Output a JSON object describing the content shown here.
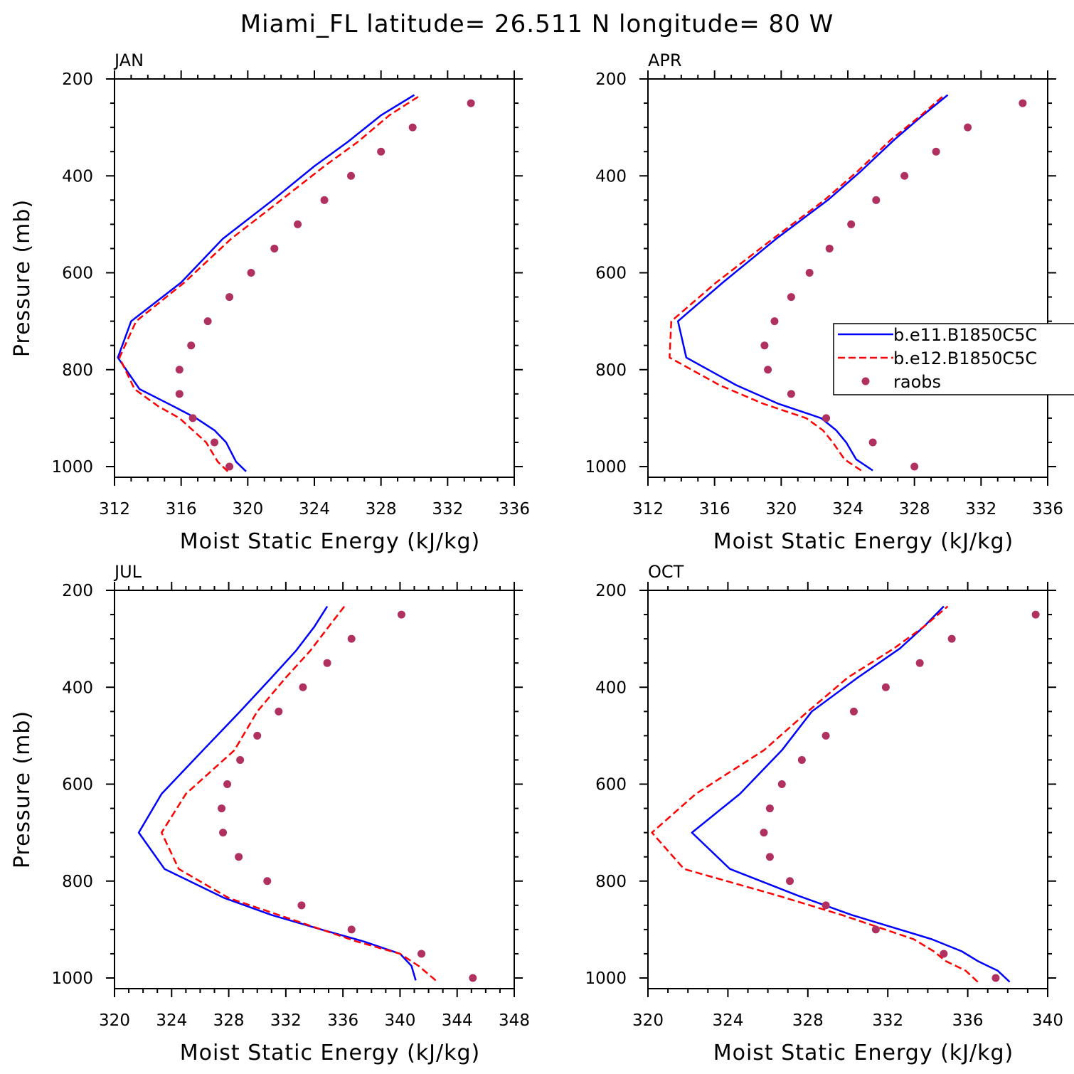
{
  "title": "Miami_FL  latitude= 26.511 N longitude= 80 W",
  "colors": {
    "series1": "#0000ff",
    "series2": "#ff0000",
    "raobs": "#b03060"
  },
  "legend": {
    "panel": 1,
    "entries": [
      "b.e11.B1850C5C",
      "b.e12.B1850C5C",
      "raobs"
    ]
  },
  "chart_data": [
    {
      "type": "line",
      "panel": "JAN",
      "xlabel": "Moist Static Energy (kJ/kg)",
      "ylabel": "Pressure (mb)",
      "xlim": [
        312,
        336
      ],
      "xticks": [
        312,
        316,
        320,
        324,
        328,
        332,
        336
      ],
      "ylim": [
        1000,
        200
      ],
      "yticks": [
        200,
        400,
        600,
        800,
        1000
      ],
      "series": [
        {
          "name": "b.e11.B1850C5C",
          "style": "solid",
          "p": [
            1010,
            990,
            950,
            925,
            900,
            875,
            840,
            775,
            700,
            620,
            530,
            450,
            380,
            330,
            275,
            233
          ],
          "x": [
            319.9,
            319.3,
            318.7,
            318.0,
            316.9,
            315.5,
            313.5,
            312.2,
            313.0,
            316.0,
            318.5,
            321.5,
            324.0,
            326.0,
            328.0,
            330.0
          ]
        },
        {
          "name": "b.e12.B1850C5C",
          "style": "dashed",
          "p": [
            1010,
            990,
            950,
            925,
            900,
            875,
            840,
            775,
            700,
            620,
            530,
            450,
            380,
            330,
            275,
            233
          ],
          "x": [
            318.8,
            318.2,
            317.5,
            316.7,
            315.9,
            314.6,
            313.2,
            312.3,
            313.3,
            316.2,
            319.0,
            322.0,
            324.6,
            326.6,
            328.5,
            330.4
          ]
        }
      ],
      "raobs": {
        "p": [
          250,
          300,
          350,
          400,
          450,
          500,
          550,
          600,
          650,
          700,
          750,
          800,
          850,
          900,
          950,
          1000
        ],
        "x": [
          333.4,
          329.9,
          328.0,
          326.2,
          324.6,
          323.0,
          321.6,
          320.2,
          318.9,
          317.6,
          316.6,
          315.9,
          315.9,
          316.7,
          318.0,
          318.9
        ]
      }
    },
    {
      "type": "line",
      "panel": "APR",
      "xlabel": "Moist Static Energy (kJ/kg)",
      "ylabel": "",
      "xlim": [
        312,
        336
      ],
      "xticks": [
        312,
        316,
        320,
        324,
        328,
        332,
        336
      ],
      "ylim": [
        1000,
        200
      ],
      "yticks": [
        200,
        400,
        600,
        800,
        1000
      ],
      "series": [
        {
          "name": "b.e11.B1850C5C",
          "style": "solid",
          "p": [
            1008,
            985,
            950,
            925,
            900,
            870,
            832,
            775,
            700,
            620,
            530,
            450,
            390,
            325,
            275,
            233
          ],
          "x": [
            325.5,
            324.5,
            323.9,
            323.3,
            322.4,
            319.8,
            317.3,
            314.3,
            313.8,
            316.5,
            319.7,
            322.8,
            324.8,
            326.8,
            328.5,
            330.0
          ]
        },
        {
          "name": "b.e12.B1850C5C",
          "style": "dashed",
          "p": [
            1008,
            985,
            950,
            925,
            900,
            870,
            832,
            775,
            700,
            620,
            530,
            450,
            390,
            325,
            275,
            233
          ],
          "x": [
            324.8,
            323.8,
            323.1,
            322.5,
            321.5,
            318.9,
            316.3,
            313.3,
            313.4,
            316.1,
            319.5,
            322.6,
            324.6,
            326.6,
            328.4,
            329.8
          ]
        }
      ],
      "raobs": {
        "p": [
          250,
          300,
          350,
          400,
          450,
          500,
          550,
          600,
          650,
          700,
          750,
          800,
          850,
          900,
          950,
          1000
        ],
        "x": [
          334.5,
          331.2,
          329.3,
          327.4,
          325.7,
          324.2,
          322.9,
          321.7,
          320.6,
          319.6,
          319.0,
          319.2,
          320.6,
          322.7,
          325.5,
          328.0
        ]
      }
    },
    {
      "type": "line",
      "panel": "JUL",
      "xlabel": "Moist Static Energy (kJ/kg)",
      "ylabel": "Pressure (mb)",
      "xlim": [
        320,
        348
      ],
      "xticks": [
        320,
        324,
        328,
        332,
        336,
        340,
        344,
        348
      ],
      "ylim": [
        1000,
        200
      ],
      "yticks": [
        200,
        400,
        600,
        800,
        1000
      ],
      "series": [
        {
          "name": "b.e11.B1850C5C",
          "style": "solid",
          "p": [
            1005,
            975,
            950,
            925,
            900,
            870,
            835,
            775,
            700,
            620,
            530,
            450,
            380,
            325,
            275,
            233
          ],
          "x": [
            341.1,
            340.8,
            340.0,
            337.5,
            334.5,
            331.0,
            327.7,
            323.5,
            321.7,
            323.3,
            326.2,
            328.8,
            331.0,
            332.7,
            334.0,
            334.9
          ]
        },
        {
          "name": "b.e12.B1850C5C",
          "style": "dashed",
          "p": [
            1005,
            975,
            950,
            925,
            900,
            870,
            835,
            775,
            700,
            620,
            530,
            450,
            380,
            325,
            275,
            233
          ],
          "x": [
            342.5,
            341.3,
            340.0,
            337.0,
            334.5,
            331.5,
            328.0,
            324.5,
            323.3,
            325.0,
            328.4,
            330.0,
            332.0,
            333.7,
            335.0,
            336.1
          ]
        }
      ],
      "raobs": {
        "p": [
          250,
          300,
          350,
          400,
          450,
          500,
          550,
          600,
          650,
          700,
          750,
          800,
          850,
          900,
          950,
          1000
        ],
        "x": [
          340.1,
          336.6,
          334.9,
          333.2,
          331.5,
          330.0,
          328.8,
          327.9,
          327.5,
          327.6,
          328.7,
          330.7,
          333.1,
          336.6,
          341.5,
          345.1
        ]
      }
    },
    {
      "type": "line",
      "panel": "OCT",
      "xlabel": "Moist Static Energy (kJ/kg)",
      "ylabel": "",
      "xlim": [
        320,
        340
      ],
      "xticks": [
        320,
        324,
        328,
        332,
        336,
        340
      ],
      "ylim": [
        1000,
        200
      ],
      "yticks": [
        200,
        400,
        600,
        800,
        1000
      ],
      "series": [
        {
          "name": "b.e11.B1850C5C",
          "style": "solid",
          "p": [
            1008,
            985,
            965,
            945,
            920,
            870,
            830,
            775,
            700,
            620,
            530,
            450,
            380,
            320,
            275,
            233
          ],
          "x": [
            338.1,
            337.5,
            336.5,
            335.7,
            334.2,
            330.2,
            327.5,
            324.1,
            322.2,
            324.6,
            326.7,
            328.2,
            330.5,
            332.6,
            333.8,
            334.8
          ]
        },
        {
          "name": "b.e12.B1850C5C",
          "style": "dashed",
          "p": [
            1008,
            985,
            965,
            945,
            920,
            870,
            830,
            775,
            700,
            620,
            530,
            450,
            380,
            320,
            275,
            233
          ],
          "x": [
            336.5,
            335.9,
            334.9,
            334.3,
            333.3,
            329.7,
            326.5,
            321.8,
            320.2,
            322.4,
            325.8,
            328.0,
            330.0,
            332.3,
            333.8,
            335.0
          ]
        }
      ],
      "raobs": {
        "p": [
          250,
          300,
          350,
          400,
          450,
          500,
          550,
          600,
          650,
          700,
          750,
          800,
          850,
          900,
          950,
          1000
        ],
        "x": [
          339.4,
          335.2,
          333.6,
          331.9,
          330.3,
          328.9,
          327.7,
          326.7,
          326.1,
          325.8,
          326.1,
          327.1,
          328.9,
          331.4,
          334.8,
          337.4
        ]
      }
    }
  ]
}
